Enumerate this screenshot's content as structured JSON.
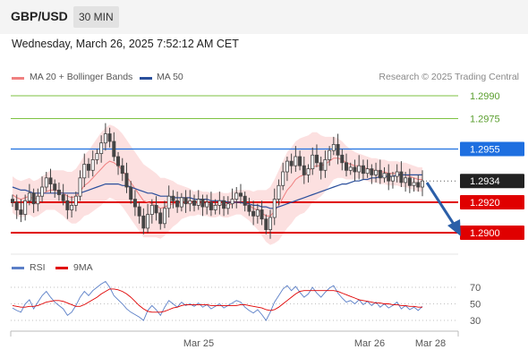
{
  "header": {
    "pair": "GBP/USD",
    "timeframe": "30 MIN"
  },
  "timestamp": "Wednesday, March 26, 2025 7:52:12 AM CET",
  "legend": {
    "ma20": "MA 20 + Bollinger Bands",
    "ma50": "MA 50",
    "rsi": "RSI",
    "ma9": "9MA"
  },
  "copyright": "Research © 2025 Trading Central",
  "colors": {
    "green": "#7dc242",
    "blue": "#1e6fe0",
    "red": "#e00000",
    "ma50": "#2a4f9c",
    "bollinger": "#fbd6d6",
    "ma20": "#f08080",
    "candle": "#444444",
    "last": "#222222",
    "arrow": "#2b5fa8"
  },
  "chart_data": {
    "type": "candlestick",
    "title": "",
    "xlabel": "",
    "ylabel": "",
    "ylim": [
      1.2885,
      1.2995
    ],
    "x_ticks": [
      "Mar 25",
      "Mar 26",
      "Mar 28"
    ],
    "levels": [
      {
        "label": "1.2990",
        "value": 1.299,
        "kind": "resistance-2"
      },
      {
        "label": "1.2975",
        "value": 1.2975,
        "kind": "resistance-1"
      },
      {
        "label": "1.2955",
        "value": 1.2955,
        "kind": "pivot"
      },
      {
        "label": "1.2934",
        "value": 1.2934,
        "kind": "last-price"
      },
      {
        "label": "1.2920",
        "value": 1.292,
        "kind": "support-1"
      },
      {
        "label": "1.2900",
        "value": 1.29,
        "kind": "support-2"
      }
    ],
    "closes": [
      1.292,
      1.2915,
      1.2912,
      1.2921,
      1.2926,
      1.2919,
      1.2924,
      1.293,
      1.2936,
      1.2932,
      1.2928,
      1.2925,
      1.2921,
      1.2915,
      1.2918,
      1.2924,
      1.2936,
      1.2945,
      1.2941,
      1.2948,
      1.2952,
      1.2959,
      1.2965,
      1.296,
      1.295,
      1.2944,
      1.2939,
      1.293,
      1.2922,
      1.2917,
      1.2911,
      1.2903,
      1.2912,
      1.2918,
      1.2913,
      1.2906,
      1.2916,
      1.2924,
      1.2921,
      1.2917,
      1.2923,
      1.2919,
      1.2921,
      1.2918,
      1.2922,
      1.2917,
      1.292,
      1.2915,
      1.2918,
      1.2921,
      1.2916,
      1.2919,
      1.2922,
      1.2926,
      1.2924,
      1.2918,
      1.2914,
      1.2911,
      1.2915,
      1.2909,
      1.2902,
      1.291,
      1.2922,
      1.2931,
      1.294,
      1.2947,
      1.2944,
      1.295,
      1.2944,
      1.2938,
      1.2942,
      1.2951,
      1.2946,
      1.2941,
      1.2948,
      1.2954,
      1.2958,
      1.2951,
      1.2946,
      1.2941,
      1.2943,
      1.294,
      1.2944,
      1.2939,
      1.2942,
      1.2938,
      1.2941,
      1.2936,
      1.2939,
      1.2934,
      1.2937,
      1.294,
      1.2933,
      1.2936,
      1.2931,
      1.2933,
      1.293,
      1.2934
    ],
    "ma20": [
      1.2925,
      1.2923,
      1.2922,
      1.2923,
      1.2924,
      1.2922,
      1.2923,
      1.2925,
      1.2927,
      1.2928,
      1.2928,
      1.2927,
      1.2926,
      1.2924,
      1.2923,
      1.2924,
      1.2927,
      1.2931,
      1.2933,
      1.2936,
      1.2939,
      1.2942,
      1.2945,
      1.2947,
      1.2946,
      1.2944,
      1.2941,
      1.2937,
      1.2933,
      1.2929,
      1.2925,
      1.2921,
      1.292,
      1.2919,
      1.2918,
      1.2916,
      1.2917,
      1.2918,
      1.2919,
      1.2919,
      1.292,
      1.292,
      1.292,
      1.2919,
      1.292,
      1.2919,
      1.2919,
      1.2918,
      1.2918,
      1.2919,
      1.2918,
      1.2918,
      1.2919,
      1.292,
      1.292,
      1.2919,
      1.2918,
      1.2916,
      1.2915,
      1.2913,
      1.2911,
      1.2911,
      1.2914,
      1.2918,
      1.2923,
      1.2928,
      1.2931,
      1.2935,
      1.2937,
      1.2938,
      1.294,
      1.2943,
      1.2944,
      1.2944,
      1.2945,
      1.2947,
      1.2949,
      1.2949,
      1.2948,
      1.2946,
      1.2945,
      1.2944,
      1.2944,
      1.2943,
      1.2942,
      1.2941,
      1.2941,
      1.294,
      1.294,
      1.2939,
      1.2939,
      1.2939,
      1.2938,
      1.2938,
      1.2937,
      1.2936,
      1.2935,
      1.2935
    ],
    "ma50": [
      1.293,
      1.2929,
      1.2928,
      1.2928,
      1.2927,
      1.2926,
      1.2926,
      1.2926,
      1.2926,
      1.2926,
      1.2926,
      1.2926,
      1.2926,
      1.2926,
      1.2926,
      1.2926,
      1.2926,
      1.2927,
      1.2928,
      1.2929,
      1.293,
      1.2931,
      1.2932,
      1.2932,
      1.2932,
      1.2932,
      1.2931,
      1.2931,
      1.293,
      1.2929,
      1.2928,
      1.2927,
      1.2926,
      1.2926,
      1.2925,
      1.2924,
      1.2924,
      1.2924,
      1.2923,
      1.2923,
      1.2923,
      1.2923,
      1.2923,
      1.2922,
      1.2922,
      1.2922,
      1.2922,
      1.2921,
      1.2921,
      1.2921,
      1.2921,
      1.292,
      1.292,
      1.292,
      1.292,
      1.2919,
      1.2919,
      1.2918,
      1.2918,
      1.2917,
      1.2917,
      1.2916,
      1.2916,
      1.2917,
      1.2918,
      1.2919,
      1.292,
      1.2921,
      1.2922,
      1.2923,
      1.2924,
      1.2925,
      1.2926,
      1.2927,
      1.2928,
      1.2929,
      1.293,
      1.2931,
      1.2932,
      1.2932,
      1.2933,
      1.2934,
      1.2934,
      1.2935,
      1.2935,
      1.2936,
      1.2936,
      1.2937,
      1.2937,
      1.2937,
      1.2937,
      1.2938,
      1.2938,
      1.2938,
      1.2938,
      1.2938,
      1.2938,
      1.2938
    ],
    "bb_width": [
      0.0012,
      0.0012,
      0.0012,
      0.0012,
      0.0012,
      0.0012,
      0.0012,
      0.0012,
      0.0012,
      0.0013,
      0.0013,
      0.0014,
      0.0015,
      0.0016,
      0.0017,
      0.0018,
      0.0019,
      0.002,
      0.0021,
      0.0022,
      0.0023,
      0.0024,
      0.0024,
      0.0024,
      0.0024,
      0.0024,
      0.0024,
      0.0024,
      0.0024,
      0.0024,
      0.0024,
      0.0024,
      0.0023,
      0.0022,
      0.0021,
      0.002,
      0.0019,
      0.0017,
      0.0015,
      0.0013,
      0.0011,
      0.001,
      0.0009,
      0.0008,
      0.0008,
      0.0008,
      0.0008,
      0.0008,
      0.0008,
      0.0008,
      0.0008,
      0.0008,
      0.0008,
      0.0008,
      0.0008,
      0.0009,
      0.001,
      0.0011,
      0.0013,
      0.0015,
      0.0017,
      0.0019,
      0.0021,
      0.0023,
      0.0024,
      0.0025,
      0.0025,
      0.0025,
      0.0025,
      0.0025,
      0.0024,
      0.0023,
      0.0022,
      0.002,
      0.0018,
      0.0016,
      0.0014,
      0.0013,
      0.0012,
      0.0011,
      0.001,
      0.0009,
      0.0008,
      0.0008,
      0.0008,
      0.0008,
      0.0008,
      0.0008,
      0.0008,
      0.0008,
      0.0008,
      0.0008,
      0.0008,
      0.0008,
      0.0008,
      0.0008,
      0.0008,
      0.0008
    ],
    "rsi": {
      "ylim": [
        20,
        80
      ],
      "ticks": [
        70,
        50,
        30
      ],
      "rsi": [
        45,
        42,
        40,
        50,
        55,
        44,
        52,
        60,
        65,
        58,
        52,
        48,
        44,
        36,
        40,
        48,
        58,
        65,
        60,
        66,
        70,
        74,
        77,
        70,
        60,
        55,
        50,
        44,
        40,
        37,
        34,
        30,
        42,
        48,
        43,
        36,
        46,
        54,
        50,
        46,
        52,
        48,
        50,
        47,
        51,
        46,
        49,
        44,
        47,
        50,
        45,
        48,
        51,
        54,
        52,
        46,
        42,
        39,
        43,
        37,
        30,
        40,
        52,
        60,
        68,
        72,
        66,
        71,
        64,
        58,
        62,
        70,
        63,
        58,
        64,
        69,
        72,
        63,
        57,
        52,
        54,
        50,
        55,
        49,
        53,
        48,
        52,
        46,
        50,
        45,
        48,
        52,
        44,
        48,
        43,
        46,
        42,
        47
      ],
      "ma9": [
        48,
        47,
        46,
        46,
        47,
        47,
        48,
        50,
        52,
        53,
        54,
        54,
        53,
        51,
        49,
        47,
        47,
        49,
        52,
        55,
        58,
        62,
        65,
        68,
        68,
        67,
        65,
        62,
        58,
        53,
        48,
        44,
        41,
        40,
        40,
        40,
        41,
        43,
        45,
        46,
        48,
        49,
        49,
        49,
        49,
        49,
        49,
        48,
        48,
        48,
        48,
        48,
        48,
        48,
        49,
        49,
        48,
        47,
        46,
        45,
        43,
        42,
        43,
        46,
        50,
        54,
        58,
        62,
        65,
        66,
        66,
        66,
        66,
        66,
        66,
        66,
        66,
        65,
        63,
        61,
        59,
        57,
        55,
        54,
        53,
        52,
        51,
        51,
        50,
        50,
        49,
        49,
        48,
        48,
        47,
        47,
        46,
        46
      ]
    }
  }
}
